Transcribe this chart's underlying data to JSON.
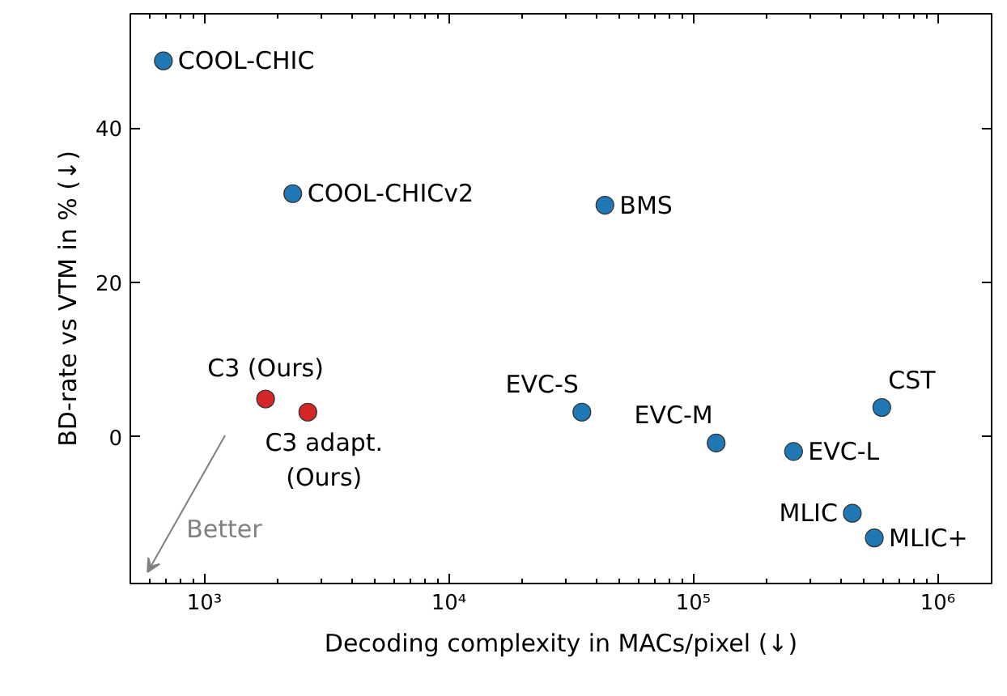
{
  "chart_data": {
    "type": "scatter",
    "xlabel": "Decoding complexity in MACs/pixel (↓)",
    "ylabel": "BD-rate vs VTM in % (↓)",
    "log": "x",
    "grid": false,
    "marker": "circle",
    "xlim": [
      498,
      1660000
    ],
    "xticks": [
      {
        "value": 1000,
        "label": "10³"
      },
      {
        "value": 10000,
        "label": "10⁴"
      },
      {
        "value": 100000,
        "label": "10⁵"
      },
      {
        "value": 1000000,
        "label": "10⁶"
      }
    ],
    "ylim": [
      -19,
      54.8
    ],
    "yticks": [
      0,
      20,
      40
    ],
    "annotations": [
      "Better"
    ],
    "series": [
      {
        "name": "COOL-CHIC",
        "color": "#1f77b4",
        "x": [
          680
        ],
        "values": [
          48.7
        ]
      },
      {
        "name": "COOL-CHICv2",
        "color": "#1f77b4",
        "x": [
          2300
        ],
        "values": [
          31.5
        ]
      },
      {
        "name": "BMS",
        "color": "#1f77b4",
        "x": [
          43500
        ],
        "values": [
          30
        ]
      },
      {
        "name": "C3 (Ours)",
        "color": "#d62728",
        "x": [
          1780
        ],
        "values": [
          4.9
        ]
      },
      {
        "name": "C3 adapt.\n(Ours)",
        "color": "#d62728",
        "x": [
          2650
        ],
        "values": [
          3.2
        ]
      },
      {
        "name": "EVC-S",
        "color": "#1f77b4",
        "x": [
          35000
        ],
        "values": [
          3.2
        ]
      },
      {
        "name": "EVC-M",
        "color": "#1f77b4",
        "x": [
          124000
        ],
        "values": [
          -0.8
        ]
      },
      {
        "name": "EVC-L",
        "color": "#1f77b4",
        "x": [
          257000
        ],
        "values": [
          -1.9
        ]
      },
      {
        "name": "CST",
        "color": "#1f77b4",
        "x": [
          590000
        ],
        "values": [
          3.8
        ]
      },
      {
        "name": "MLIC",
        "color": "#1f77b4",
        "x": [
          447000
        ],
        "values": [
          -9.9
        ]
      },
      {
        "name": "MLIC+",
        "color": "#1f77b4",
        "x": [
          550000
        ],
        "values": [
          -13.1
        ]
      }
    ]
  }
}
